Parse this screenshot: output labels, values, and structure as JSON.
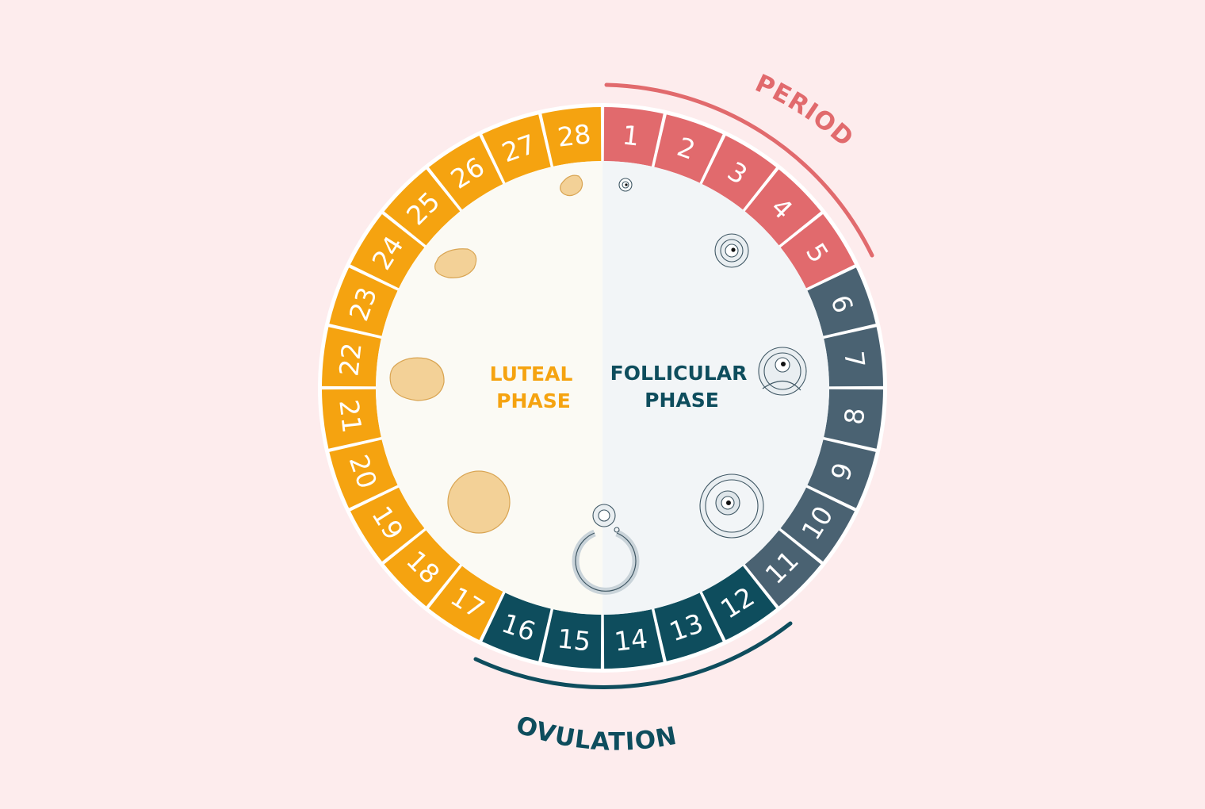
{
  "labels": {
    "period": "PERIOD",
    "ovulation": "OVULATION",
    "luteal_line1": "LUTEAL",
    "luteal_line2": "PHASE",
    "follicular_line1": "FOLLICULAR",
    "follicular_line2": "PHASE"
  },
  "colors": {
    "background": "#fdeced",
    "period": "#e16a6d",
    "follicular": "#4a6272",
    "ovulation": "#0e4d5d",
    "luteal": "#f5a310",
    "luteal_panel": "#fbfaf4",
    "follicular_panel": "#f2f5f7",
    "follicle_stroke": "#3e5663",
    "corpus_fill": "#f3d197",
    "corpus_stroke": "#d9a553"
  },
  "days": [
    {
      "n": "1",
      "phase": "period"
    },
    {
      "n": "2",
      "phase": "period"
    },
    {
      "n": "3",
      "phase": "period"
    },
    {
      "n": "4",
      "phase": "period"
    },
    {
      "n": "5",
      "phase": "period"
    },
    {
      "n": "6",
      "phase": "follicular"
    },
    {
      "n": "7",
      "phase": "follicular"
    },
    {
      "n": "8",
      "phase": "follicular"
    },
    {
      "n": "9",
      "phase": "follicular"
    },
    {
      "n": "10",
      "phase": "follicular"
    },
    {
      "n": "11",
      "phase": "follicular"
    },
    {
      "n": "12",
      "phase": "ovulation"
    },
    {
      "n": "13",
      "phase": "ovulation"
    },
    {
      "n": "14",
      "phase": "ovulation"
    },
    {
      "n": "15",
      "phase": "ovulation"
    },
    {
      "n": "16",
      "phase": "ovulation"
    },
    {
      "n": "17",
      "phase": "luteal"
    },
    {
      "n": "18",
      "phase": "luteal"
    },
    {
      "n": "19",
      "phase": "luteal"
    },
    {
      "n": "20",
      "phase": "luteal"
    },
    {
      "n": "21",
      "phase": "luteal"
    },
    {
      "n": "22",
      "phase": "luteal"
    },
    {
      "n": "23",
      "phase": "luteal"
    },
    {
      "n": "24",
      "phase": "luteal"
    },
    {
      "n": "25",
      "phase": "luteal"
    },
    {
      "n": "26",
      "phase": "luteal"
    },
    {
      "n": "27",
      "phase": "luteal"
    },
    {
      "n": "28",
      "phase": "luteal"
    }
  ]
}
